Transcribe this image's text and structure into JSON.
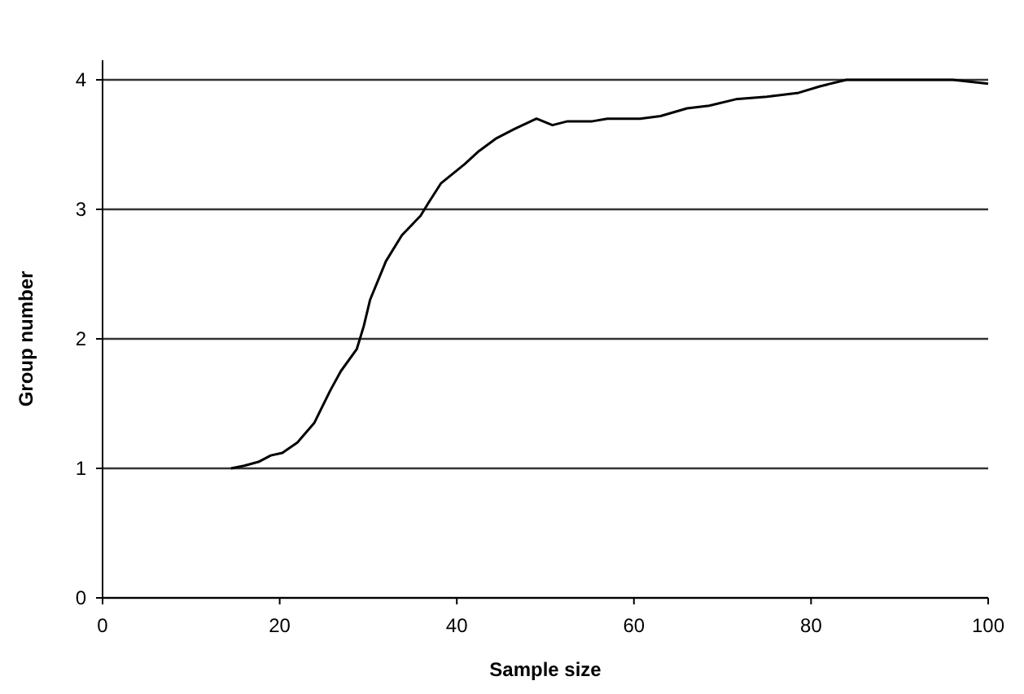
{
  "chart_data": {
    "type": "line",
    "xlabel": "Sample size",
    "ylabel": "Group number",
    "xlim": [
      0,
      100
    ],
    "xticks": [
      0,
      20,
      40,
      60,
      80,
      100
    ],
    "ylim": [
      0,
      4
    ],
    "yticks": [
      0,
      1,
      2,
      3,
      4
    ],
    "grid": "y",
    "marker": "none",
    "line_style": "solid",
    "series": [
      {
        "color": "#000000",
        "x": [
          14.5,
          16,
          17.6,
          19,
          20.3,
          22,
          23.9,
          25.7,
          26.9,
          28.7,
          29.5,
          30.2,
          32,
          33.8,
          35.9,
          36.8,
          38.2,
          40.9,
          42.5,
          44.5,
          46.5,
          49,
          50.8,
          52.5,
          55.3,
          57,
          60.7,
          63,
          66,
          68.5,
          71.5,
          75,
          78.6,
          81,
          84,
          88,
          92,
          96,
          100
        ],
        "values": [
          1.0,
          1.02,
          1.05,
          1.1,
          1.12,
          1.2,
          1.35,
          1.6,
          1.75,
          1.92,
          2.1,
          2.3,
          2.6,
          2.8,
          2.95,
          3.05,
          3.2,
          3.35,
          3.45,
          3.55,
          3.62,
          3.7,
          3.65,
          3.68,
          3.68,
          3.7,
          3.7,
          3.72,
          3.78,
          3.8,
          3.85,
          3.87,
          3.9,
          3.95,
          4.0,
          4.0,
          4.0,
          4.0,
          3.97
        ]
      }
    ]
  }
}
